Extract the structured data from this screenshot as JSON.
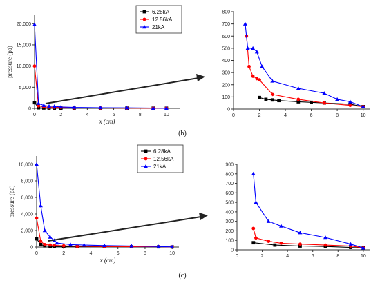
{
  "colors": {
    "6.28kA": "#000000",
    "12.56kA": "#ff0000",
    "21kA": "#0000ff"
  },
  "captions": [
    "(b)",
    "(c)"
  ],
  "chart_data": [
    {
      "id": "b-main",
      "type": "line",
      "title": "",
      "xlabel": "x (cm)",
      "ylabel": "pressure (pa)",
      "xlim": [
        0,
        11
      ],
      "ylim": [
        0,
        22000
      ],
      "xticks": [
        0,
        2,
        4,
        6,
        8,
        10
      ],
      "yticks": [
        0,
        5000,
        10000,
        15000,
        20000
      ],
      "ytick_labels": [
        "0",
        "5,000",
        "10,000",
        "15,000",
        "20,000"
      ],
      "legend": "top-right",
      "series": [
        {
          "name": "6.28kA",
          "marker": "square",
          "x": [
            0,
            0.3,
            0.7,
            1.1,
            1.5,
            2,
            3,
            5,
            7,
            9,
            10
          ],
          "y": [
            1350,
            140,
            95,
            80,
            70,
            60,
            55,
            50,
            45,
            40,
            30
          ]
        },
        {
          "name": "12.56kA",
          "marker": "circle",
          "x": [
            0,
            0.3,
            0.7,
            1.1,
            1.5,
            2,
            3,
            5,
            7,
            9,
            10
          ],
          "y": [
            10000,
            600,
            350,
            270,
            250,
            240,
            120,
            80,
            50,
            30,
            20
          ]
        },
        {
          "name": "21kA",
          "marker": "triangle",
          "x": [
            0,
            0.3,
            0.7,
            1.1,
            1.5,
            2,
            3,
            5,
            7,
            9,
            10
          ],
          "y": [
            19800,
            1200,
            700,
            500,
            470,
            350,
            230,
            170,
            130,
            60,
            20
          ]
        }
      ]
    },
    {
      "id": "b-zoom",
      "type": "line",
      "title": "",
      "xlabel": "",
      "ylabel": "",
      "xlim": [
        0,
        10.5
      ],
      "ylim": [
        0,
        800
      ],
      "xticks": [
        0,
        2,
        4,
        6,
        8,
        10
      ],
      "yticks": [
        0,
        100,
        200,
        300,
        400,
        500,
        600,
        700,
        800
      ],
      "series": [
        {
          "name": "6.28kA",
          "marker": "square",
          "x": [
            2,
            2.5,
            3,
            3.5,
            5,
            6,
            7,
            9,
            10
          ],
          "y": [
            95,
            80,
            75,
            70,
            60,
            55,
            50,
            40,
            20
          ]
        },
        {
          "name": "12.56kA",
          "marker": "circle",
          "x": [
            1,
            1.2,
            1.5,
            1.8,
            2,
            3,
            5,
            7,
            9,
            10
          ],
          "y": [
            600,
            350,
            270,
            250,
            240,
            120,
            80,
            50,
            30,
            20
          ]
        },
        {
          "name": "21kA",
          "marker": "triangle",
          "x": [
            0.9,
            1.1,
            1.5,
            1.8,
            2.2,
            3,
            5,
            7,
            8,
            9,
            10
          ],
          "y": [
            700,
            500,
            500,
            470,
            350,
            230,
            170,
            130,
            80,
            60,
            20
          ]
        }
      ]
    },
    {
      "id": "c-main",
      "type": "line",
      "title": "",
      "xlabel": "x (cm)",
      "ylabel": "pressure (pa)",
      "xlim": [
        0,
        10.5
      ],
      "ylim": [
        0,
        11000
      ],
      "xticks": [
        0,
        2,
        4,
        6,
        8,
        10
      ],
      "yticks": [
        0,
        2000,
        4000,
        6000,
        8000,
        10000
      ],
      "ytick_labels": [
        "0",
        "2,000",
        "4,000",
        "6,000",
        "8,000",
        "10,000"
      ],
      "legend": "top-right",
      "series": [
        {
          "name": "6.28kA",
          "marker": "square",
          "x": [
            0,
            0.3,
            0.6,
            1,
            1.3,
            2,
            3,
            5,
            7,
            9,
            10
          ],
          "y": [
            1000,
            300,
            150,
            100,
            75,
            60,
            45,
            40,
            35,
            25,
            20
          ]
        },
        {
          "name": "12.56kA",
          "marker": "circle",
          "x": [
            0,
            0.3,
            0.6,
            1,
            1.3,
            2,
            3,
            5,
            7,
            9,
            10
          ],
          "y": [
            3500,
            700,
            300,
            250,
            220,
            150,
            90,
            60,
            50,
            40,
            20
          ]
        },
        {
          "name": "21kA",
          "marker": "triangle",
          "x": [
            0,
            0.3,
            0.6,
            1,
            1.3,
            1.5,
            2.5,
            3.5,
            5,
            7,
            9,
            10
          ],
          "y": [
            10000,
            5000,
            2000,
            1200,
            800,
            500,
            300,
            250,
            180,
            130,
            60,
            20
          ]
        }
      ]
    },
    {
      "id": "c-zoom",
      "type": "line",
      "title": "",
      "xlabel": "",
      "ylabel": "",
      "xlim": [
        0,
        10.5
      ],
      "ylim": [
        0,
        900
      ],
      "xticks": [
        0,
        2,
        4,
        6,
        8,
        10
      ],
      "yticks": [
        0,
        100,
        200,
        300,
        400,
        500,
        600,
        700,
        800,
        900
      ],
      "series": [
        {
          "name": "6.28kA",
          "marker": "square",
          "x": [
            1.3,
            3,
            5,
            7,
            9,
            10
          ],
          "y": [
            75,
            50,
            40,
            35,
            25,
            20
          ]
        },
        {
          "name": "12.56kA",
          "marker": "circle",
          "x": [
            1.3,
            1.5,
            2.5,
            3.5,
            5,
            7,
            9,
            10
          ],
          "y": [
            225,
            125,
            90,
            70,
            60,
            50,
            40,
            20
          ]
        },
        {
          "name": "21kA",
          "marker": "triangle",
          "x": [
            1.3,
            1.5,
            2.5,
            3.5,
            5,
            7,
            9,
            10
          ],
          "y": [
            800,
            500,
            300,
            250,
            180,
            130,
            60,
            20
          ]
        }
      ]
    }
  ]
}
